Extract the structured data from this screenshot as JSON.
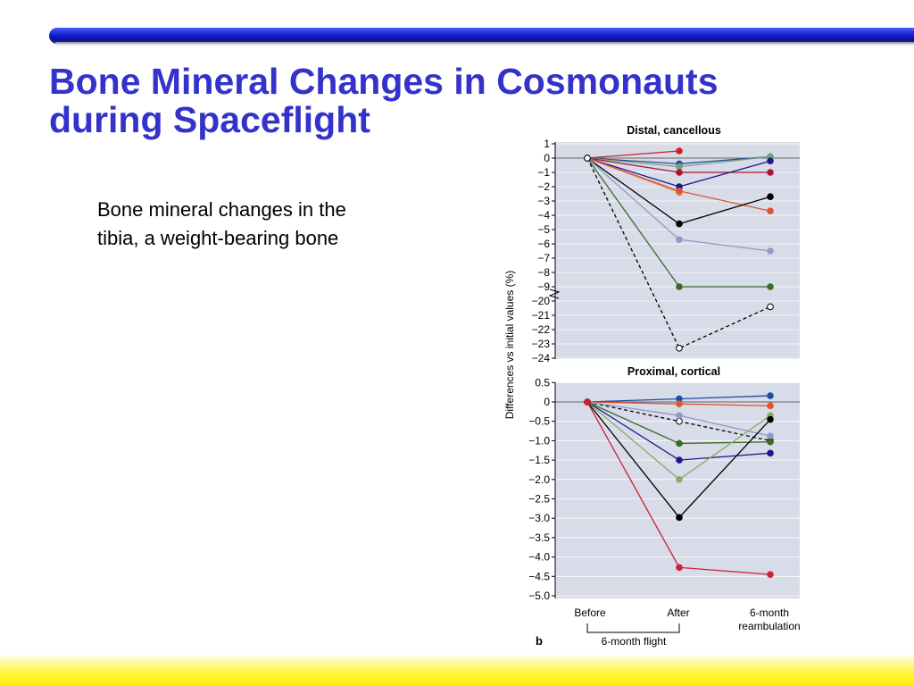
{
  "slide": {
    "title_line1": "Bone Mineral Changes in Cosmonauts",
    "title_line2": "during Spaceflight",
    "body_line1": "Bone mineral changes in the",
    "body_line2": "tibia, a weight-bearing bone"
  },
  "colors": {
    "title": "#3333cc",
    "panel_bg": "#d8dbe8",
    "series": [
      "#cc2222",
      "#1f4e9e",
      "#7aa07a",
      "#aa1530",
      "#1a1a8c",
      "#e08a4a",
      "#dd5533",
      "#000000",
      "#8f9cc8",
      "#3a6a2a",
      "#000000"
    ]
  },
  "figure": {
    "y_axis_label": "Differences vs initial values (%)",
    "x_labels": [
      "Before",
      "After",
      "6-month"
    ],
    "x_label_extra": "reambulation",
    "flight_label": "6-month flight",
    "panel_letter": "b"
  },
  "chart_data": [
    {
      "type": "line",
      "title": "Distal, cancellous",
      "x": [
        "Before",
        "After",
        "6-month reambulation"
      ],
      "ylabel": "Differences vs initial values (%)",
      "ylim_upper": [
        -9,
        1
      ],
      "ylim_lower": [
        -24,
        -20
      ],
      "axis_break": true,
      "y_ticks": [
        "1",
        "0",
        "−1",
        "−2",
        "−3",
        "−4",
        "−5",
        "−6",
        "−7",
        "−8",
        "−9",
        "−20",
        "−21",
        "−22",
        "−23",
        "−24"
      ],
      "grid": true,
      "series": [
        {
          "color": "#cc2222",
          "values": [
            0,
            0.5,
            null
          ],
          "style": "solid",
          "marker": "filled"
        },
        {
          "color": "#1f4e9e",
          "values": [
            0,
            -0.4,
            0.1
          ],
          "style": "solid",
          "marker": "filled"
        },
        {
          "color": "#7aa07a",
          "values": [
            0,
            -0.6,
            0.1
          ],
          "style": "solid",
          "marker": "filled"
        },
        {
          "color": "#aa1530",
          "values": [
            0,
            -1.0,
            -1.0
          ],
          "style": "solid",
          "marker": "filled"
        },
        {
          "color": "#1a1a8c",
          "values": [
            0,
            -2.0,
            -0.2
          ],
          "style": "solid",
          "marker": "filled"
        },
        {
          "color": "#e08a4a",
          "values": [
            0,
            -2.4,
            null
          ],
          "style": "solid",
          "marker": "filled"
        },
        {
          "color": "#dd5533",
          "values": [
            0,
            -2.3,
            -3.7
          ],
          "style": "solid",
          "marker": "filled"
        },
        {
          "color": "#000000",
          "values": [
            0,
            -4.6,
            -2.7
          ],
          "style": "solid",
          "marker": "filled"
        },
        {
          "color": "#8f9cc8",
          "values": [
            0,
            -5.7,
            -6.5
          ],
          "style": "solid",
          "marker": "filled"
        },
        {
          "color": "#3a6a2a",
          "values": [
            0,
            -9.0,
            -9.0
          ],
          "style": "solid",
          "marker": "filled"
        },
        {
          "color": "#000000",
          "values": [
            0,
            -23.3,
            -20.4
          ],
          "style": "dashed",
          "marker": "open"
        }
      ]
    },
    {
      "type": "line",
      "title": "Proximal, cortical",
      "x": [
        "Before",
        "After",
        "6-month reambulation"
      ],
      "ylabel": "Differences vs initial values (%)",
      "ylim": [
        -5.0,
        0.5
      ],
      "y_ticks": [
        "0.5",
        "0",
        "−0.5",
        "−1.0",
        "−1.5",
        "−2.0",
        "−2.5",
        "−3.0",
        "−3.5",
        "−4.0",
        "−4.5",
        "−5.0"
      ],
      "grid": true,
      "series": [
        {
          "color": "#1f4e9e",
          "values": [
            0,
            0.08,
            0.16
          ],
          "style": "solid",
          "marker": "filled"
        },
        {
          "color": "#dd5533",
          "values": [
            0,
            -0.05,
            -0.1
          ],
          "style": "solid",
          "marker": "filled"
        },
        {
          "color": "#000000",
          "values": [
            0,
            -0.5,
            -1.0
          ],
          "style": "dashed",
          "marker": "open"
        },
        {
          "color": "#8f9cc8",
          "values": [
            0,
            -0.35,
            -0.88
          ],
          "style": "solid",
          "marker": "filled"
        },
        {
          "color": "#3a6a2a",
          "values": [
            0,
            -1.07,
            -1.03
          ],
          "style": "solid",
          "marker": "filled"
        },
        {
          "color": "#1a1a8c",
          "values": [
            0,
            -1.5,
            -1.32
          ],
          "style": "solid",
          "marker": "filled"
        },
        {
          "color": "#8aaa6a",
          "values": [
            0,
            -2.0,
            -0.35
          ],
          "style": "solid",
          "marker": "filled"
        },
        {
          "color": "#000000",
          "values": [
            0,
            -2.98,
            -0.45
          ],
          "style": "solid",
          "marker": "filled"
        },
        {
          "color": "#cc2233",
          "values": [
            0,
            -4.27,
            -4.45
          ],
          "style": "solid",
          "marker": "filled"
        }
      ]
    }
  ]
}
